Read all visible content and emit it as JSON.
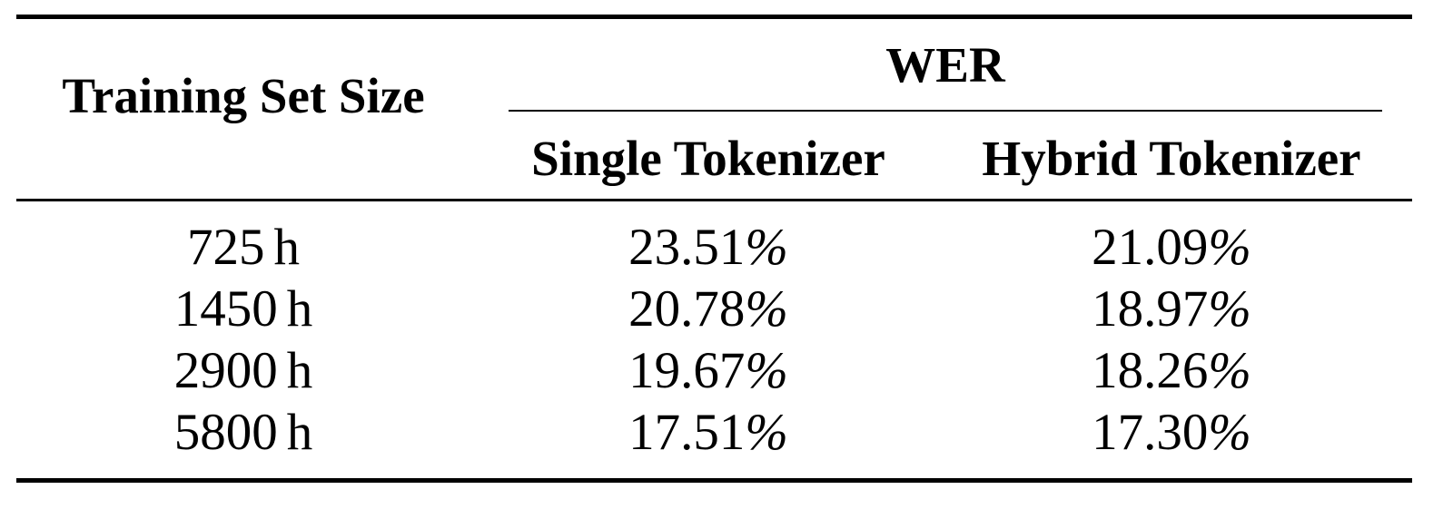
{
  "table": {
    "header": {
      "row_label": "Training Set Size",
      "group_label": "WER",
      "columns": [
        "Single Tokenizer",
        "Hybrid Tokenizer"
      ]
    },
    "rows": [
      {
        "size_value": "725",
        "size_unit": "h",
        "single_value": "23.51",
        "hybrid_value": "21.09",
        "pct": "%"
      },
      {
        "size_value": "1450",
        "size_unit": "h",
        "single_value": "20.78",
        "hybrid_value": "18.97",
        "pct": "%"
      },
      {
        "size_value": "2900",
        "size_unit": "h",
        "single_value": "19.67",
        "hybrid_value": "18.26",
        "pct": "%"
      },
      {
        "size_value": "5800",
        "size_unit": "h",
        "single_value": "17.51",
        "hybrid_value": "17.30",
        "pct": "%"
      }
    ]
  }
}
